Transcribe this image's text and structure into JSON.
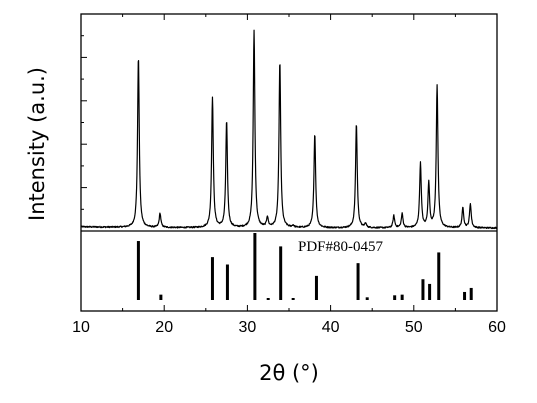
{
  "chart_data": {
    "type": "line",
    "xlabel": "2θ (°)",
    "ylabel": "Intensity (a.u.)",
    "xlim": [
      10,
      60
    ],
    "x_ticks": [
      "10",
      "20",
      "30",
      "40",
      "50",
      "60"
    ],
    "y_tick_labels_shown": false,
    "grid": false,
    "legend": "none",
    "colors": {
      "line": "#000000",
      "frame": "#000000",
      "background": "#ffffff"
    },
    "series": [
      {
        "role": "measured-pattern",
        "baseline": 2.0,
        "noise": 0.35,
        "peak_width_deg": 0.12,
        "peaks": [
          {
            "x": 16.9,
            "y": 87
          },
          {
            "x": 19.5,
            "y": 9
          },
          {
            "x": 25.8,
            "y": 67
          },
          {
            "x": 27.5,
            "y": 55
          },
          {
            "x": 30.8,
            "y": 100
          },
          {
            "x": 32.4,
            "y": 7
          },
          {
            "x": 33.9,
            "y": 85
          },
          {
            "x": 35.5,
            "y": 3
          },
          {
            "x": 38.1,
            "y": 49
          },
          {
            "x": 43.1,
            "y": 54
          },
          {
            "x": 44.2,
            "y": 4
          },
          {
            "x": 47.6,
            "y": 8
          },
          {
            "x": 48.6,
            "y": 9
          },
          {
            "x": 50.8,
            "y": 34
          },
          {
            "x": 51.8,
            "y": 24
          },
          {
            "x": 52.8,
            "y": 73
          },
          {
            "x": 55.9,
            "y": 12
          },
          {
            "x": 56.8,
            "y": 14
          }
        ]
      },
      {
        "role": "reference-pattern",
        "type": "stick",
        "label": "PDF#80-0457",
        "sticks": [
          {
            "x": 16.9,
            "y": 88
          },
          {
            "x": 19.6,
            "y": 8
          },
          {
            "x": 25.8,
            "y": 64
          },
          {
            "x": 27.6,
            "y": 53
          },
          {
            "x": 30.9,
            "y": 100
          },
          {
            "x": 32.5,
            "y": 3
          },
          {
            "x": 34.0,
            "y": 80
          },
          {
            "x": 35.5,
            "y": 3
          },
          {
            "x": 38.3,
            "y": 36
          },
          {
            "x": 43.3,
            "y": 55
          },
          {
            "x": 44.4,
            "y": 4
          },
          {
            "x": 47.7,
            "y": 7
          },
          {
            "x": 48.6,
            "y": 8
          },
          {
            "x": 51.1,
            "y": 31
          },
          {
            "x": 51.9,
            "y": 24
          },
          {
            "x": 53.0,
            "y": 71
          },
          {
            "x": 56.1,
            "y": 12
          },
          {
            "x": 56.9,
            "y": 18
          }
        ]
      }
    ]
  }
}
